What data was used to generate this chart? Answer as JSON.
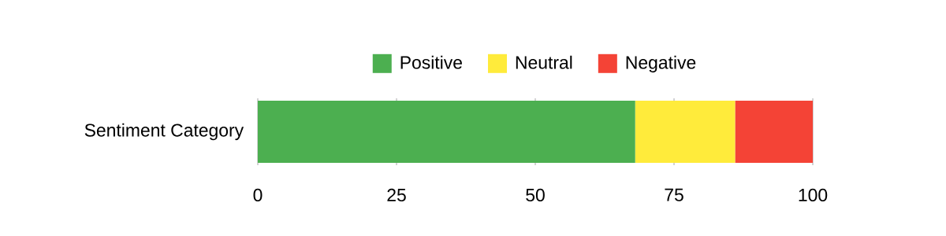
{
  "chart_data": {
    "type": "bar",
    "orientation": "horizontal",
    "stacked": true,
    "categories": [
      "Sentiment Category"
    ],
    "series": [
      {
        "name": "Positive",
        "color": "#4caf50",
        "values": [
          68
        ]
      },
      {
        "name": "Neutral",
        "color": "#ffeb3b",
        "values": [
          18
        ]
      },
      {
        "name": "Negative",
        "color": "#f44336",
        "values": [
          14
        ]
      }
    ],
    "xlim": [
      0,
      100
    ],
    "xticks": [
      0,
      25,
      50,
      75,
      100
    ],
    "grid": "x",
    "legend": "top"
  }
}
